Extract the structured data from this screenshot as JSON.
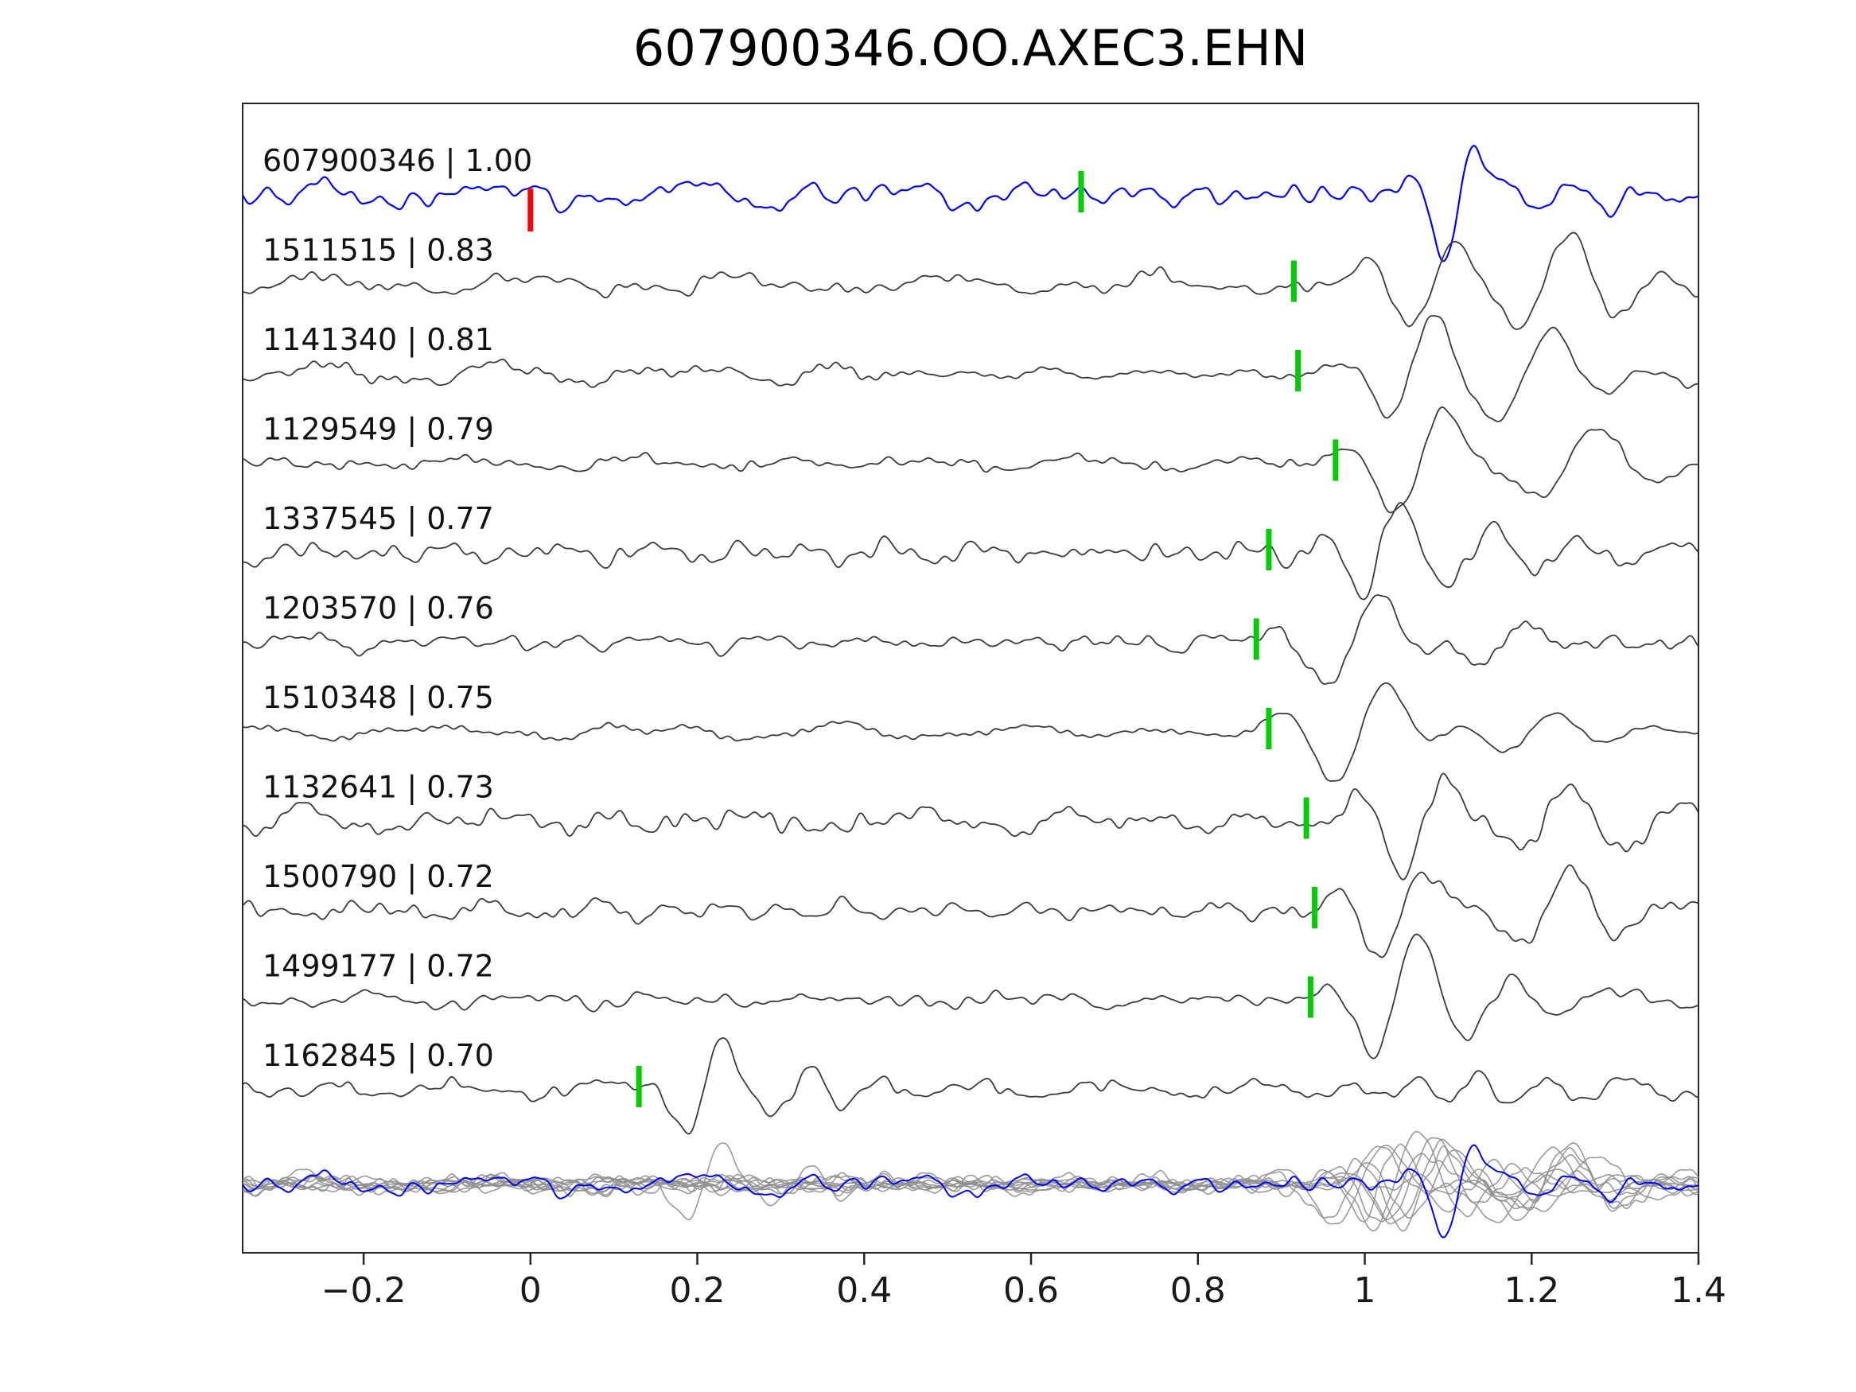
{
  "title": "607900346.OO.AXEC3.EHN",
  "colors": {
    "template_trace": "#0000ff",
    "detection_trace": "#3a3a3a",
    "overlay_trace": "#8f8f8f",
    "pick_marker": "#00cc00",
    "template_marker": "#ff0000",
    "axis": "#262626",
    "text": "#1a1a1a",
    "background": "#ffffff"
  },
  "chart_data": {
    "type": "line",
    "title": "607900346.OO.AXEC3.EHN",
    "xlabel": "",
    "ylabel": "",
    "xlim": [
      -0.345,
      1.4
    ],
    "xticks": [
      -0.2,
      0,
      0.2,
      0.4,
      0.6,
      0.8,
      1,
      1.2,
      1.4
    ],
    "xtick_labels": [
      "−0.2",
      "0",
      "0.2",
      "0.4",
      "0.6",
      "0.8",
      "1",
      "1.2",
      "1.4"
    ],
    "grid": false,
    "legend": "none",
    "traces": [
      {
        "id": "607900346",
        "label": "607900346 | 1.00",
        "correlation": 1.0,
        "is_template": true,
        "pick_time": 0.66,
        "template_mark_time": 0.0,
        "seed": 101,
        "noise": 0.3,
        "packets": [
          {
            "t": 1.115,
            "sigma": 0.035,
            "f": 12,
            "amp": 1.25
          },
          {
            "t": 1.19,
            "sigma": 0.05,
            "f": 10,
            "amp": -0.6
          },
          {
            "t": 1.32,
            "sigma": 0.07,
            "f": 9,
            "amp": 0.4
          }
        ]
      },
      {
        "id": "1511515",
        "label": "1511515 | 0.83",
        "correlation": 0.83,
        "is_template": false,
        "pick_time": 0.915,
        "seed": 202,
        "noise": 0.22,
        "packets": [
          {
            "t": 1.08,
            "sigma": 0.055,
            "f": 9,
            "amp": 1.0
          },
          {
            "t": 1.22,
            "sigma": 0.09,
            "f": 8.5,
            "amp": 1.0
          }
        ]
      },
      {
        "id": "1141340",
        "label": "1141340 | 0.81",
        "correlation": 0.81,
        "is_template": false,
        "pick_time": 0.92,
        "seed": 303,
        "noise": 0.2,
        "packets": [
          {
            "t": 1.06,
            "sigma": 0.05,
            "f": 9,
            "amp": 1.2
          },
          {
            "t": 1.2,
            "sigma": 0.08,
            "f": 7.5,
            "amp": 1.0
          }
        ]
      },
      {
        "id": "1129549",
        "label": "1129549 | 0.79",
        "correlation": 0.79,
        "is_template": false,
        "pick_time": 0.965,
        "seed": 404,
        "noise": 0.16,
        "packets": [
          {
            "t": 1.07,
            "sigma": 0.06,
            "f": 8,
            "amp": 1.3
          },
          {
            "t": 1.25,
            "sigma": 0.09,
            "f": 6.5,
            "amp": 0.9
          }
        ]
      },
      {
        "id": "1337545",
        "label": "1337545 | 0.77",
        "correlation": 0.77,
        "is_template": false,
        "pick_time": 0.885,
        "seed": 505,
        "noise": 0.33,
        "packets": [
          {
            "t": 1.02,
            "sigma": 0.045,
            "f": 10,
            "amp": 1.1
          },
          {
            "t": 1.14,
            "sigma": 0.07,
            "f": 9,
            "amp": 0.55
          }
        ]
      },
      {
        "id": "1203570",
        "label": "1203570 | 0.76",
        "correlation": 0.76,
        "is_template": false,
        "pick_time": 0.87,
        "seed": 606,
        "noise": 0.22,
        "packets": [
          {
            "t": 0.99,
            "sigma": 0.06,
            "f": 7.5,
            "amp": 1.3
          },
          {
            "t": 1.17,
            "sigma": 0.07,
            "f": 8,
            "amp": 0.5
          }
        ]
      },
      {
        "id": "1510348",
        "label": "1510348 | 0.75",
        "correlation": 0.75,
        "is_template": false,
        "pick_time": 0.885,
        "seed": 707,
        "noise": 0.16,
        "packets": [
          {
            "t": 1.0,
            "sigma": 0.06,
            "f": 7,
            "amp": 1.35
          },
          {
            "t": 1.2,
            "sigma": 0.08,
            "f": 7,
            "amp": 0.6
          }
        ]
      },
      {
        "id": "1132641",
        "label": "1132641 | 0.73",
        "correlation": 0.73,
        "is_template": false,
        "pick_time": 0.93,
        "seed": 808,
        "noise": 0.3,
        "packets": [
          {
            "t": 1.07,
            "sigma": 0.055,
            "f": 9,
            "amp": 1.2
          },
          {
            "t": 1.23,
            "sigma": 0.09,
            "f": 8,
            "amp": 0.8
          }
        ]
      },
      {
        "id": "1500790",
        "label": "1500790 | 0.72",
        "correlation": 0.72,
        "is_template": false,
        "pick_time": 0.94,
        "seed": 909,
        "noise": 0.24,
        "packets": [
          {
            "t": 1.05,
            "sigma": 0.055,
            "f": 8.5,
            "amp": 1.3
          },
          {
            "t": 1.22,
            "sigma": 0.08,
            "f": 8,
            "amp": 0.8
          }
        ]
      },
      {
        "id": "1499177",
        "label": "1499177 | 0.72",
        "correlation": 0.72,
        "is_template": false,
        "pick_time": 0.935,
        "seed": 1010,
        "noise": 0.2,
        "packets": [
          {
            "t": 1.04,
            "sigma": 0.05,
            "f": 8.5,
            "amp": 1.3
          },
          {
            "t": 1.16,
            "sigma": 0.06,
            "f": 8,
            "amp": 0.7
          }
        ]
      },
      {
        "id": "1162845",
        "label": "1162845 | 0.70",
        "correlation": 0.7,
        "is_template": false,
        "pick_time": 0.13,
        "seed": 1111,
        "noise": 0.2,
        "packets": [
          {
            "t": 0.21,
            "sigma": 0.04,
            "f": 11,
            "amp": 1.2
          },
          {
            "t": 0.32,
            "sigma": 0.07,
            "f": 12,
            "amp": 0.55
          },
          {
            "t": 1.12,
            "sigma": 0.09,
            "f": 13,
            "amp": 0.35
          },
          {
            "t": 1.3,
            "sigma": 0.05,
            "f": 12,
            "amp": 0.25
          }
        ]
      }
    ],
    "overlay_row": {
      "description": "all traces superimposed, template in blue",
      "scale": 0.8
    }
  }
}
